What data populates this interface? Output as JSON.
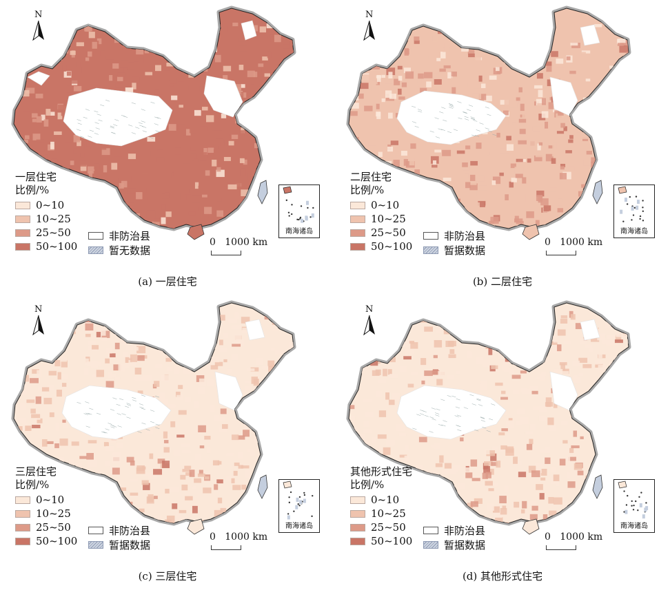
{
  "palette": {
    "class_0_10": "#fbe8d9",
    "class_10_25": "#efc3ae",
    "class_25_50": "#dd9a88",
    "class_50_100": "#c97566",
    "non_county": "#ffffff",
    "no_data": "#c4cede",
    "boundary_halo": "#a9a9a9",
    "coast_line": "#222222"
  },
  "shared": {
    "north_label": "N",
    "legend_classes": [
      "0~10",
      "10~25",
      "25~50",
      "50~100"
    ],
    "non_county_label": "非防治县",
    "scale_label": "0   1000 km",
    "inset_label": "南海诸岛"
  },
  "panels": [
    {
      "id": "a",
      "legend_title": "一层住宅\n比例/%",
      "no_data_label": "暂无数据",
      "caption": "(a) 一层住宅",
      "dominant_class": "50~100"
    },
    {
      "id": "b",
      "legend_title": "二层住宅\n比例/%",
      "no_data_label": "暂据数据",
      "caption": "(b) 二层住宅",
      "dominant_class": "10~25"
    },
    {
      "id": "c",
      "legend_title": "三层住宅\n比例/%",
      "no_data_label": "暂据数据",
      "caption": "(c) 三层住宅",
      "dominant_class": "0~10"
    },
    {
      "id": "d",
      "legend_title": "其他形式住宅\n比例/%",
      "no_data_label": "暂据数据",
      "caption": "(d) 其他形式住宅",
      "dominant_class": "0~10"
    }
  ]
}
